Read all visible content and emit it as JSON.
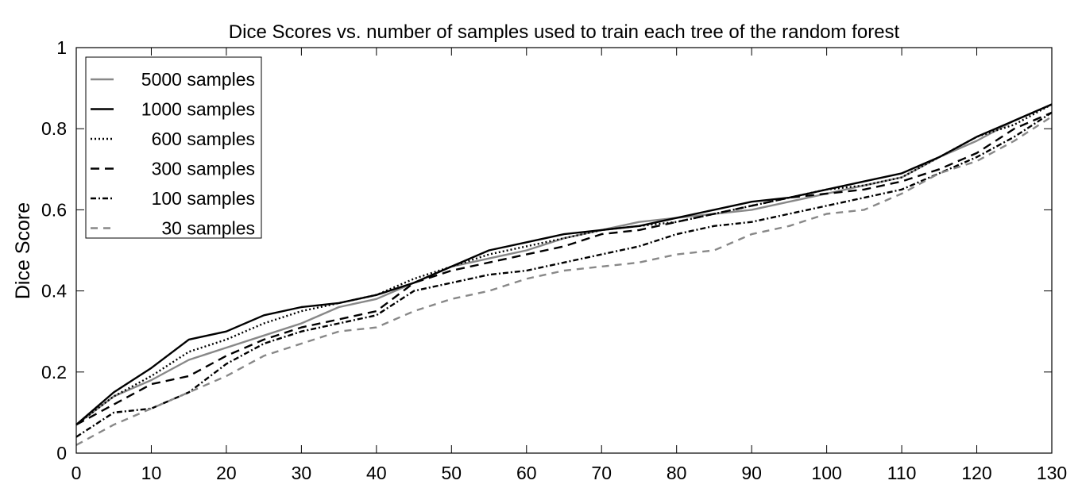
{
  "chart_data": {
    "type": "line",
    "title": "Dice Scores vs. number of samples used to train each tree of the random forest",
    "xlabel": "",
    "ylabel": "Dice Score",
    "xlim": [
      0,
      130
    ],
    "ylim": [
      0,
      1
    ],
    "xticks": [
      0,
      10,
      20,
      30,
      40,
      50,
      60,
      70,
      80,
      90,
      100,
      110,
      120,
      130
    ],
    "yticks": [
      0,
      0.2,
      0.4,
      0.6,
      0.8,
      1
    ],
    "ytick_labels": [
      "0",
      "0.2",
      "0.4",
      "0.6",
      "0.8",
      "1"
    ],
    "grid": false,
    "legend_position": "top-left",
    "x": [
      0,
      5,
      10,
      15,
      20,
      25,
      30,
      35,
      40,
      45,
      50,
      55,
      60,
      65,
      70,
      75,
      80,
      85,
      90,
      95,
      100,
      105,
      110,
      115,
      120,
      125,
      130
    ],
    "series": [
      {
        "name": "5000 samples",
        "color": "#888888",
        "dash": "",
        "width": 2.4,
        "values": [
          0.07,
          0.14,
          0.18,
          0.23,
          0.26,
          0.29,
          0.32,
          0.36,
          0.38,
          0.42,
          0.46,
          0.48,
          0.5,
          0.53,
          0.55,
          0.57,
          0.58,
          0.59,
          0.6,
          0.62,
          0.64,
          0.66,
          0.68,
          0.73,
          0.77,
          0.82,
          0.86
        ]
      },
      {
        "name": "1000 samples",
        "color": "#000000",
        "dash": "",
        "width": 2.4,
        "values": [
          0.07,
          0.15,
          0.21,
          0.28,
          0.3,
          0.34,
          0.36,
          0.37,
          0.39,
          0.42,
          0.46,
          0.5,
          0.52,
          0.54,
          0.55,
          0.56,
          0.58,
          0.6,
          0.62,
          0.63,
          0.65,
          0.67,
          0.69,
          0.73,
          0.78,
          0.82,
          0.86
        ]
      },
      {
        "name": "600 samples",
        "color": "#000000",
        "dash": "2,3",
        "width": 2.4,
        "values": [
          0.07,
          0.14,
          0.19,
          0.25,
          0.28,
          0.32,
          0.35,
          0.37,
          0.39,
          0.43,
          0.46,
          0.49,
          0.51,
          0.53,
          0.55,
          0.56,
          0.57,
          0.59,
          0.61,
          0.63,
          0.65,
          0.66,
          0.68,
          0.73,
          0.78,
          0.81,
          0.86
        ]
      },
      {
        "name": "300 samples",
        "color": "#000000",
        "dash": "11,7",
        "width": 2.4,
        "values": [
          0.07,
          0.12,
          0.17,
          0.19,
          0.24,
          0.28,
          0.31,
          0.33,
          0.35,
          0.42,
          0.45,
          0.47,
          0.49,
          0.51,
          0.54,
          0.55,
          0.57,
          0.59,
          0.61,
          0.63,
          0.64,
          0.65,
          0.67,
          0.7,
          0.74,
          0.8,
          0.84
        ]
      },
      {
        "name": "100 samples",
        "color": "#000000",
        "dash": "7,3,2,3",
        "width": 2.4,
        "values": [
          0.04,
          0.1,
          0.11,
          0.15,
          0.22,
          0.27,
          0.3,
          0.32,
          0.34,
          0.4,
          0.42,
          0.44,
          0.45,
          0.47,
          0.49,
          0.51,
          0.54,
          0.56,
          0.57,
          0.59,
          0.61,
          0.63,
          0.65,
          0.69,
          0.73,
          0.78,
          0.84
        ]
      },
      {
        "name": "30 samples",
        "color": "#888888",
        "dash": "9,7",
        "width": 2.4,
        "values": [
          0.02,
          0.07,
          0.11,
          0.15,
          0.19,
          0.24,
          0.27,
          0.3,
          0.31,
          0.35,
          0.38,
          0.4,
          0.43,
          0.45,
          0.46,
          0.47,
          0.49,
          0.5,
          0.54,
          0.56,
          0.59,
          0.6,
          0.64,
          0.69,
          0.72,
          0.77,
          0.83
        ]
      }
    ]
  }
}
